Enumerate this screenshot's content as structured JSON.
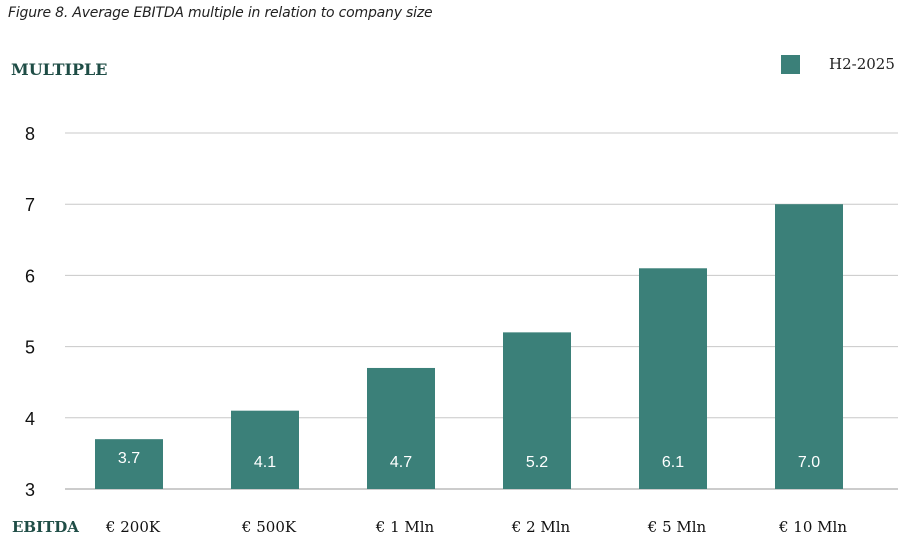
{
  "caption": "Figure 8. Average EBITDA multiple in relation to company size",
  "chart_data": {
    "type": "bar",
    "ylabel": "MULTIPLE",
    "xlabel": "EBITDA",
    "categories": [
      "€ 200K",
      "€ 500K",
      "€ 1 Mln",
      "€ 2 Mln",
      "€ 5 Mln",
      "€ 10 Mln"
    ],
    "series": [
      {
        "name": "H2-2025",
        "values": [
          3.7,
          4.1,
          4.7,
          5.2,
          6.1,
          7.0
        ],
        "labels": [
          "3.7",
          "4.1",
          "4.7",
          "5.2",
          "6.1",
          "7.0"
        ],
        "color": "#3b8079"
      }
    ],
    "ylim": [
      3,
      8
    ],
    "yticks": [
      3,
      4,
      5,
      6,
      7,
      8
    ],
    "grid": true,
    "legend_position": "top-right"
  }
}
